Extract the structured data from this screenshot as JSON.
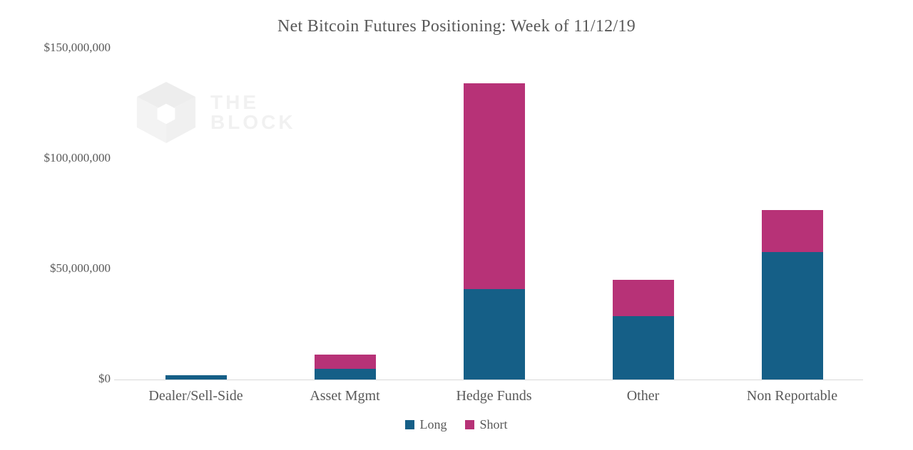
{
  "title": "Net Bitcoin Futures Positioning: Week of 11/12/19",
  "watermark": {
    "logo": "the-block-cube-logo",
    "line1": "THE",
    "line2": "BLOCK"
  },
  "colors": {
    "long": "#155f87",
    "short": "#b73277",
    "axis_line": "#d9d9d9",
    "text": "#595959",
    "watermark": "#f1f1f1"
  },
  "y_axis": {
    "ticks": [
      {
        "label": "$150,000,000",
        "value": 150000000
      },
      {
        "label": "$100,000,000",
        "value": 100000000
      },
      {
        "label": "$50,000,000",
        "value": 50000000
      },
      {
        "label": "$0",
        "value": 0
      }
    ]
  },
  "legend": [
    {
      "label": "Long",
      "color": "#155f87"
    },
    {
      "label": "Short",
      "color": "#b73277"
    }
  ],
  "chart_data": {
    "type": "bar",
    "stacked": true,
    "title": "Net Bitcoin Futures Positioning: Week of 11/12/19",
    "xlabel": "",
    "ylabel": "",
    "ylim": [
      0,
      150000000
    ],
    "grid": false,
    "legend_position": "bottom",
    "categories": [
      "Dealer/Sell-Side",
      "Asset Mgmt",
      "Hedge Funds",
      "Other",
      "Non Reportable"
    ],
    "series": [
      {
        "name": "Long",
        "color": "#155f87",
        "values": [
          1800000,
          4800000,
          41000000,
          28700000,
          57700000
        ]
      },
      {
        "name": "Short",
        "color": "#b73277",
        "values": [
          0,
          6500000,
          93200000,
          16500000,
          19000000
        ]
      }
    ]
  }
}
